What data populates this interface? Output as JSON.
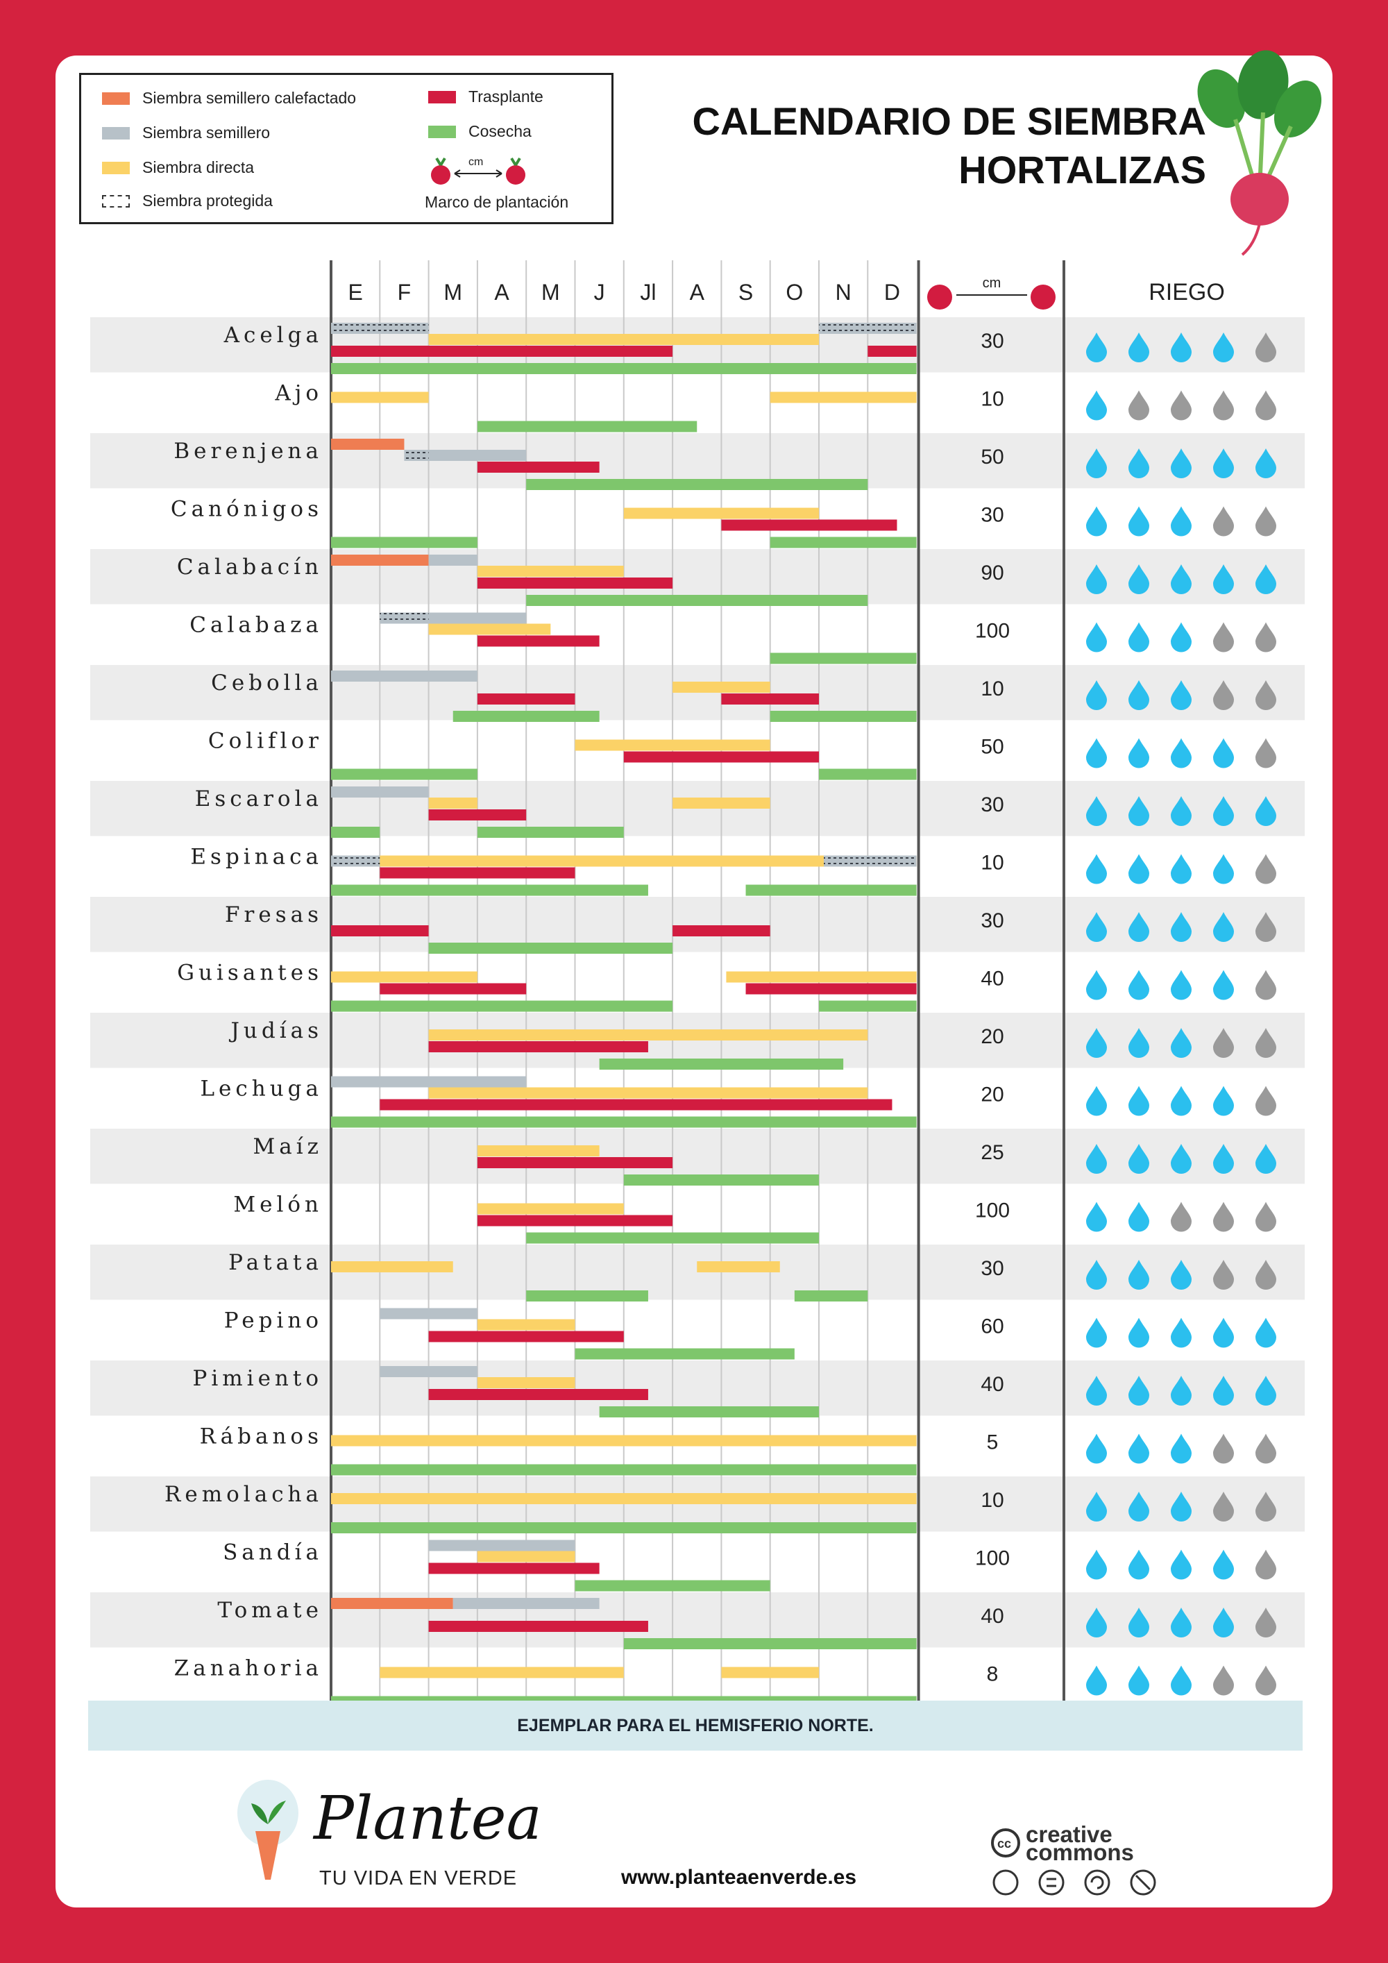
{
  "title": {
    "line1": "CALENDARIO DE SIEMBRA",
    "line2": "HORTALIZAS"
  },
  "legend": {
    "heated_seedbed": "Siembra semillero calefactado",
    "seedbed": "Siembra semillero",
    "direct": "Siembra directa",
    "protected": "Siembra protegida",
    "transplant": "Trasplante",
    "harvest": "Cosecha",
    "spacing_unit": "cm",
    "spacing": "Marco de plantación"
  },
  "colors": {
    "heated_seedbed": "#ef7d52",
    "seedbed": "#b7c1c8",
    "direct": "#fbd267",
    "transplant": "#d21c40",
    "harvest": "#7ec66c",
    "drop_on": "#2bbfee",
    "drop_off": "#9a9a9a",
    "frame": "#d4223f",
    "row_shade": "#ececec"
  },
  "header": {
    "spacing_unit": "cm",
    "watering": "RIEGO"
  },
  "footer": {
    "notice": "EJEMPLAR PARA EL HEMISFERIO NORTE.",
    "brand": "Plantea",
    "tagline": "TU VIDA EN VERDE",
    "website": "www.planteaenverde.es",
    "license_line1": "creative",
    "license_line2": "commons"
  },
  "chart_data": {
    "type": "gantt",
    "months": [
      "E",
      "F",
      "M",
      "A",
      "M",
      "J",
      "Jl",
      "A",
      "S",
      "O",
      "N",
      "D"
    ],
    "units": "months (0 = start of January, 12 = end of December)",
    "crops": [
      {
        "name": "Acelga",
        "spacing": "30",
        "water": 4,
        "bars": [
          {
            "lane": 0,
            "type": "protected",
            "start": 0,
            "end": 2
          },
          {
            "lane": 0,
            "type": "protected",
            "start": 10,
            "end": 12
          },
          {
            "lane": 1,
            "type": "direct",
            "start": 2,
            "end": 10
          },
          {
            "lane": 2,
            "type": "transplant",
            "start": 0,
            "end": 7
          },
          {
            "lane": 2,
            "type": "transplant",
            "start": 11,
            "end": 12
          },
          {
            "lane": 3,
            "type": "harvest",
            "start": 0,
            "end": 12
          }
        ]
      },
      {
        "name": "Ajo",
        "spacing": "10",
        "water": 1,
        "bars": [
          {
            "lane": 1,
            "type": "direct",
            "start": 0,
            "end": 2
          },
          {
            "lane": 1,
            "type": "direct",
            "start": 9,
            "end": 12
          },
          {
            "lane": 3,
            "type": "harvest",
            "start": 3,
            "end": 7.5
          }
        ]
      },
      {
        "name": "Berenjena",
        "spacing": "50",
        "water": 5,
        "bars": [
          {
            "lane": 0,
            "type": "heated_seedbed",
            "start": 0,
            "end": 1.5
          },
          {
            "lane": 1,
            "type": "seedbed",
            "start": 1.5,
            "end": 4
          },
          {
            "lane": 1,
            "type": "protected",
            "start": 1.5,
            "end": 2
          },
          {
            "lane": 2,
            "type": "transplant",
            "start": 3,
            "end": 5.5
          },
          {
            "lane": 3,
            "type": "harvest",
            "start": 4,
            "end": 11
          }
        ]
      },
      {
        "name": "Canónigos",
        "spacing": "30",
        "water": 3,
        "bars": [
          {
            "lane": 1,
            "type": "direct",
            "start": 6,
            "end": 10
          },
          {
            "lane": 2,
            "type": "transplant",
            "start": 8,
            "end": 11.6
          },
          {
            "lane": 3,
            "type": "harvest",
            "start": 0,
            "end": 3
          },
          {
            "lane": 3,
            "type": "harvest",
            "start": 9,
            "end": 12
          }
        ]
      },
      {
        "name": "Calabacín",
        "spacing": "90",
        "water": 5,
        "bars": [
          {
            "lane": 0,
            "type": "heated_seedbed",
            "start": 0,
            "end": 2
          },
          {
            "lane": 0,
            "type": "seedbed",
            "start": 2,
            "end": 3
          },
          {
            "lane": 1,
            "type": "direct",
            "start": 3,
            "end": 6
          },
          {
            "lane": 2,
            "type": "transplant",
            "start": 3,
            "end": 7
          },
          {
            "lane": 3,
            "type": "harvest",
            "start": 4,
            "end": 11
          }
        ]
      },
      {
        "name": "Calabaza",
        "spacing": "100",
        "water": 3,
        "bars": [
          {
            "lane": 0,
            "type": "protected",
            "start": 1,
            "end": 2
          },
          {
            "lane": 0,
            "type": "seedbed",
            "start": 2,
            "end": 4
          },
          {
            "lane": 1,
            "type": "direct",
            "start": 2,
            "end": 4.5
          },
          {
            "lane": 2,
            "type": "transplant",
            "start": 3,
            "end": 5.5
          },
          {
            "lane": 3,
            "type": "harvest",
            "start": 9,
            "end": 12
          }
        ]
      },
      {
        "name": "Cebolla",
        "spacing": "10",
        "water": 3,
        "bars": [
          {
            "lane": 0,
            "type": "seedbed",
            "start": 0,
            "end": 3
          },
          {
            "lane": 1,
            "type": "direct",
            "start": 7,
            "end": 9
          },
          {
            "lane": 2,
            "type": "transplant",
            "start": 3,
            "end": 5
          },
          {
            "lane": 2,
            "type": "transplant",
            "start": 8,
            "end": 10
          },
          {
            "lane": 3,
            "type": "harvest",
            "start": 2.5,
            "end": 5.5
          },
          {
            "lane": 3,
            "type": "harvest",
            "start": 9,
            "end": 12
          }
        ]
      },
      {
        "name": "Coliflor",
        "spacing": "50",
        "water": 4,
        "bars": [
          {
            "lane": 1,
            "type": "direct",
            "start": 5,
            "end": 9
          },
          {
            "lane": 2,
            "type": "transplant",
            "start": 6,
            "end": 10
          },
          {
            "lane": 3,
            "type": "harvest",
            "start": 0,
            "end": 3
          },
          {
            "lane": 3,
            "type": "harvest",
            "start": 10,
            "end": 12
          }
        ]
      },
      {
        "name": "Escarola",
        "spacing": "30",
        "water": 5,
        "bars": [
          {
            "lane": 0,
            "type": "seedbed",
            "start": 0,
            "end": 2
          },
          {
            "lane": 1,
            "type": "direct",
            "start": 2,
            "end": 3
          },
          {
            "lane": 1,
            "type": "direct",
            "start": 7,
            "end": 9
          },
          {
            "lane": 2,
            "type": "transplant",
            "start": 2,
            "end": 4
          },
          {
            "lane": 3,
            "type": "harvest",
            "start": 0,
            "end": 1
          },
          {
            "lane": 3,
            "type": "harvest",
            "start": 3,
            "end": 6
          }
        ]
      },
      {
        "name": "Espinaca",
        "spacing": "10",
        "water": 4,
        "bars": [
          {
            "lane": 1,
            "type": "direct",
            "start": 0,
            "end": 12
          },
          {
            "lane": 1,
            "type": "protected",
            "start": 0,
            "end": 1
          },
          {
            "lane": 1,
            "type": "protected",
            "start": 10.1,
            "end": 12
          },
          {
            "lane": 2,
            "type": "transplant",
            "start": 1,
            "end": 5
          },
          {
            "lane": 3,
            "type": "harvest",
            "start": 0,
            "end": 6.5
          },
          {
            "lane": 3,
            "type": "harvest",
            "start": 8.5,
            "end": 12
          }
        ]
      },
      {
        "name": "Fresas",
        "spacing": "30",
        "water": 4,
        "bars": [
          {
            "lane": 2,
            "type": "transplant",
            "start": 0,
            "end": 2
          },
          {
            "lane": 2,
            "type": "transplant",
            "start": 7,
            "end": 9
          },
          {
            "lane": 3,
            "type": "harvest",
            "start": 2,
            "end": 7
          }
        ]
      },
      {
        "name": "Guisantes",
        "spacing": "40",
        "water": 4,
        "bars": [
          {
            "lane": 1,
            "type": "direct",
            "start": 0,
            "end": 3
          },
          {
            "lane": 1,
            "type": "direct",
            "start": 8.1,
            "end": 12
          },
          {
            "lane": 2,
            "type": "transplant",
            "start": 1,
            "end": 4
          },
          {
            "lane": 2,
            "type": "transplant",
            "start": 8.5,
            "end": 12
          },
          {
            "lane": 3,
            "type": "harvest",
            "start": 0,
            "end": 7
          },
          {
            "lane": 3,
            "type": "harvest",
            "start": 10,
            "end": 12
          }
        ]
      },
      {
        "name": "Judías",
        "spacing": "20",
        "water": 3,
        "bars": [
          {
            "lane": 1,
            "type": "direct",
            "start": 2,
            "end": 11
          },
          {
            "lane": 2,
            "type": "transplant",
            "start": 2,
            "end": 6.5
          },
          {
            "lane": 3,
            "type": "harvest",
            "start": 5.5,
            "end": 10.5
          }
        ]
      },
      {
        "name": "Lechuga",
        "spacing": "20",
        "water": 4,
        "bars": [
          {
            "lane": 0,
            "type": "seedbed",
            "start": 0,
            "end": 4
          },
          {
            "lane": 1,
            "type": "direct",
            "start": 2,
            "end": 11
          },
          {
            "lane": 2,
            "type": "transplant",
            "start": 1,
            "end": 11.5
          },
          {
            "lane": 3,
            "type": "harvest",
            "start": 0,
            "end": 12
          }
        ]
      },
      {
        "name": "Maíz",
        "spacing": "25",
        "water": 5,
        "bars": [
          {
            "lane": 1,
            "type": "direct",
            "start": 3,
            "end": 5.5
          },
          {
            "lane": 2,
            "type": "transplant",
            "start": 3,
            "end": 7
          },
          {
            "lane": 3,
            "type": "harvest",
            "start": 6,
            "end": 10
          }
        ]
      },
      {
        "name": "Melón",
        "spacing": "100",
        "water": 2,
        "bars": [
          {
            "lane": 1,
            "type": "direct",
            "start": 3,
            "end": 6
          },
          {
            "lane": 2,
            "type": "transplant",
            "start": 3,
            "end": 7
          },
          {
            "lane": 3,
            "type": "harvest",
            "start": 4,
            "end": 10
          }
        ]
      },
      {
        "name": "Patata",
        "spacing": "30",
        "water": 3,
        "bars": [
          {
            "lane": 1,
            "type": "direct",
            "start": 0,
            "end": 2.5
          },
          {
            "lane": 1,
            "type": "direct",
            "start": 7.5,
            "end": 9.2
          },
          {
            "lane": 3,
            "type": "harvest",
            "start": 4,
            "end": 6.5
          },
          {
            "lane": 3,
            "type": "harvest",
            "start": 9.5,
            "end": 11
          }
        ]
      },
      {
        "name": "Pepino",
        "spacing": "60",
        "water": 5,
        "bars": [
          {
            "lane": 0,
            "type": "seedbed",
            "start": 1,
            "end": 3
          },
          {
            "lane": 1,
            "type": "direct",
            "start": 3,
            "end": 5
          },
          {
            "lane": 2,
            "type": "transplant",
            "start": 2,
            "end": 6
          },
          {
            "lane": 3,
            "type": "harvest",
            "start": 5,
            "end": 9.5
          }
        ]
      },
      {
        "name": "Pimiento",
        "spacing": "40",
        "water": 5,
        "bars": [
          {
            "lane": 0,
            "type": "seedbed",
            "start": 1,
            "end": 3
          },
          {
            "lane": 1,
            "type": "direct",
            "start": 3,
            "end": 5
          },
          {
            "lane": 2,
            "type": "transplant",
            "start": 2,
            "end": 6.5
          },
          {
            "lane": 3,
            "type": "harvest",
            "start": 5.5,
            "end": 10
          }
        ]
      },
      {
        "name": "Rábanos",
        "spacing": "5",
        "water": 3,
        "bars": [
          {
            "lane": 1,
            "type": "direct",
            "start": 0,
            "end": 12
          },
          {
            "lane": 3,
            "type": "harvest",
            "start": 0,
            "end": 12
          }
        ]
      },
      {
        "name": "Remolacha",
        "spacing": "10",
        "water": 3,
        "bars": [
          {
            "lane": 1,
            "type": "direct",
            "start": 0,
            "end": 12
          },
          {
            "lane": 3,
            "type": "harvest",
            "start": 0,
            "end": 12
          }
        ]
      },
      {
        "name": "Sandía",
        "spacing": "100",
        "water": 4,
        "bars": [
          {
            "lane": 0,
            "type": "seedbed",
            "start": 2,
            "end": 5
          },
          {
            "lane": 1,
            "type": "direct",
            "start": 3,
            "end": 5
          },
          {
            "lane": 2,
            "type": "transplant",
            "start": 2,
            "end": 5.5
          },
          {
            "lane": 3,
            "type": "harvest",
            "start": 5,
            "end": 9
          }
        ]
      },
      {
        "name": "Tomate",
        "spacing": "40",
        "water": 4,
        "bars": [
          {
            "lane": 0,
            "type": "heated_seedbed",
            "start": 0,
            "end": 2.5
          },
          {
            "lane": 0,
            "type": "seedbed",
            "start": 2.5,
            "end": 5.5
          },
          {
            "lane": 2,
            "type": "transplant",
            "start": 2,
            "end": 6.5
          },
          {
            "lane": 3,
            "type": "harvest",
            "start": 6,
            "end": 12
          }
        ]
      },
      {
        "name": "Zanahoria",
        "spacing": "8",
        "water": 3,
        "bars": [
          {
            "lane": 1,
            "type": "direct",
            "start": 1,
            "end": 6
          },
          {
            "lane": 1,
            "type": "direct",
            "start": 8,
            "end": 10
          },
          {
            "lane": 3,
            "type": "harvest",
            "start": 0,
            "end": 12
          }
        ]
      }
    ]
  }
}
